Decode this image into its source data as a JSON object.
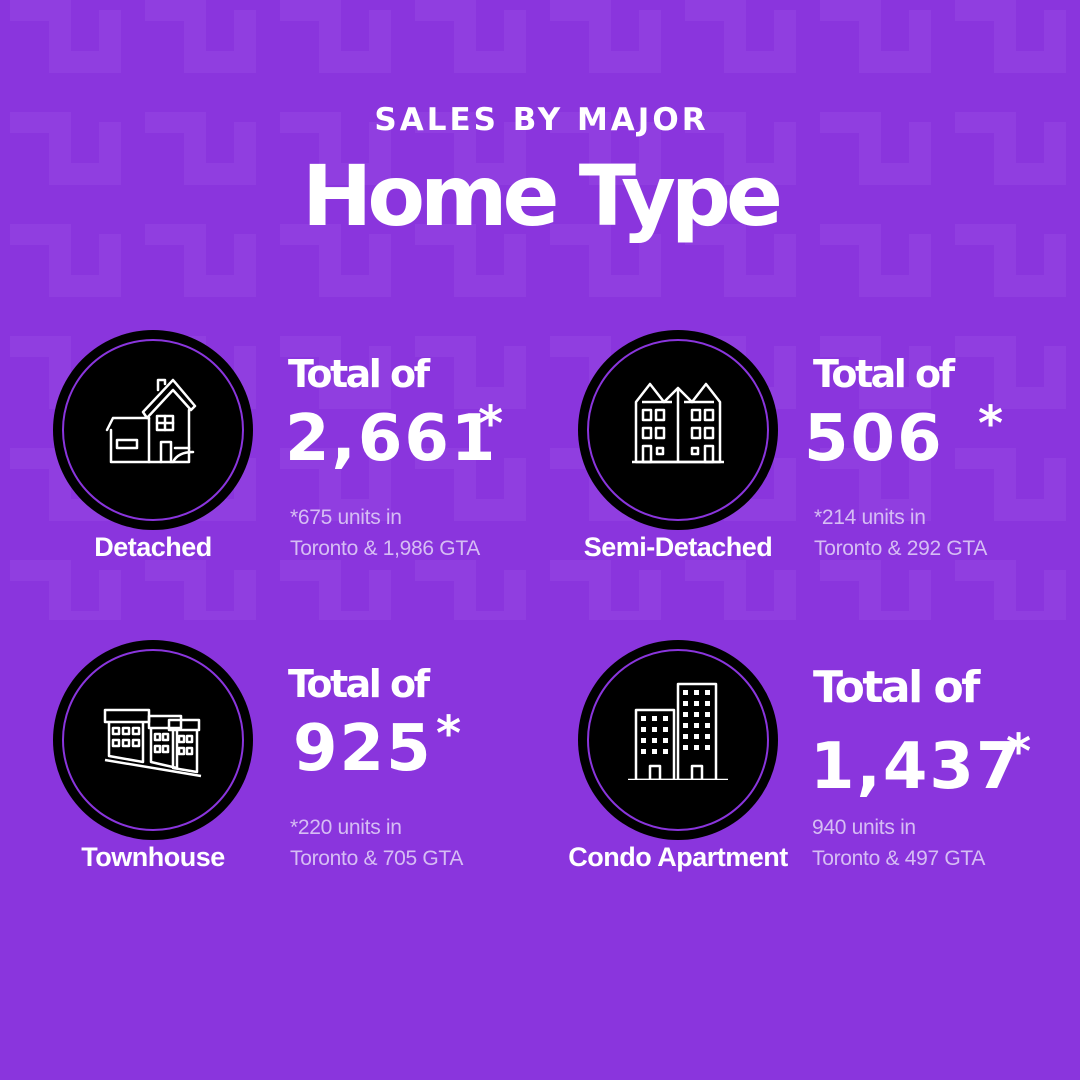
{
  "header": {
    "kicker": "SALES BY MAJOR",
    "title": "Home Type"
  },
  "cards": [
    {
      "type": "Detached",
      "icon": "detached-house-icon",
      "total_label": "Total of",
      "count": "2,661",
      "marker": "*",
      "note_line1": "*675  units in",
      "note_line2": "Toronto &  1,986 GTA"
    },
    {
      "type": "Semi-Detached",
      "icon": "semi-detached-house-icon",
      "total_label": "Total of",
      "count": "506",
      "marker": "*",
      "note_line1": "*214 units in",
      "note_line2": "Toronto &  292 GTA"
    },
    {
      "type": "Townhouse",
      "icon": "townhouse-icon",
      "total_label": "Total of",
      "count": "925",
      "marker": "*",
      "note_line1": "*220 units in",
      "note_line2": "Toronto & 705 GTA"
    },
    {
      "type": "Condo Apartment",
      "icon": "condo-building-icon",
      "total_label": "Total of",
      "count": "1,437",
      "marker": "*",
      "note_line1": "940 units in",
      "note_line2": "Toronto &  497 GTA"
    }
  ],
  "colors": {
    "background": "#8a35dd",
    "circle": "#000000",
    "text": "#ffffff",
    "note_text": "#d6bdf4"
  }
}
